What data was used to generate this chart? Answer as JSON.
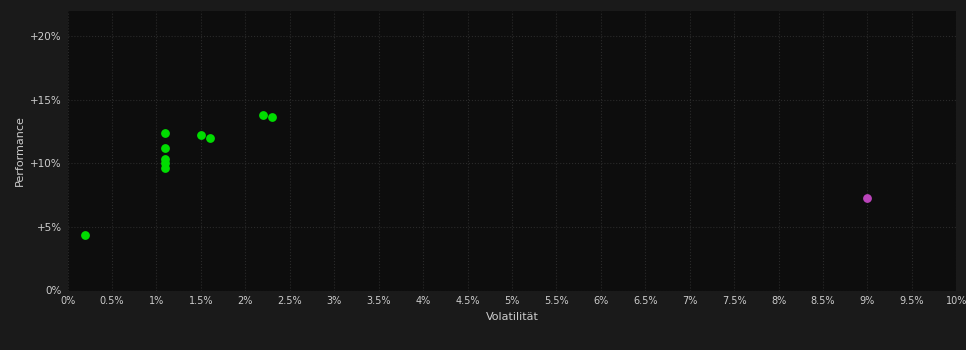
{
  "background_color": "#1a1a1a",
  "plot_bg_color": "#0d0d0d",
  "grid_color": "#2a2a2a",
  "text_color": "#cccccc",
  "xlabel": "Volatilität",
  "ylabel": "Performance",
  "xlim": [
    0,
    0.1
  ],
  "ylim": [
    0,
    0.22
  ],
  "xticks": [
    0.0,
    0.005,
    0.01,
    0.015,
    0.02,
    0.025,
    0.03,
    0.035,
    0.04,
    0.045,
    0.05,
    0.055,
    0.06,
    0.065,
    0.07,
    0.075,
    0.08,
    0.085,
    0.09,
    0.095,
    0.1
  ],
  "xtick_labels": [
    "0%",
    "0.5%",
    "1%",
    "1.5%",
    "2%",
    "2.5%",
    "3%",
    "3.5%",
    "4%",
    "4.5%",
    "5%",
    "5.5%",
    "6%",
    "6.5%",
    "7%",
    "7.5%",
    "8%",
    "8.5%",
    "9%",
    "9.5%",
    "10%"
  ],
  "yticks": [
    0.0,
    0.05,
    0.1,
    0.15,
    0.2
  ],
  "ytick_labels": [
    "0%",
    "+5%",
    "+10%",
    "+15%",
    "+20%"
  ],
  "green_points": [
    [
      0.002,
      0.044
    ],
    [
      0.011,
      0.124
    ],
    [
      0.011,
      0.112
    ],
    [
      0.011,
      0.103
    ],
    [
      0.011,
      0.1
    ],
    [
      0.011,
      0.096
    ],
    [
      0.015,
      0.122
    ],
    [
      0.016,
      0.12
    ],
    [
      0.022,
      0.138
    ],
    [
      0.023,
      0.136
    ]
  ],
  "purple_point": [
    0.09,
    0.073
  ],
  "green_color": "#00dd00",
  "purple_color": "#bb44bb",
  "marker_size": 28
}
